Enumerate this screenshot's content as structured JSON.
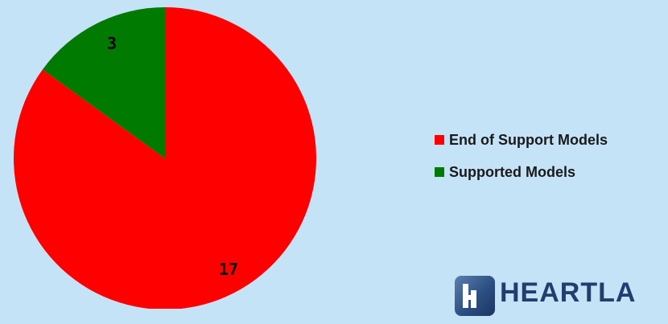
{
  "chart_data": {
    "type": "pie",
    "categories": [
      "End of Support Models",
      "Supported Models"
    ],
    "values": [
      17,
      3
    ],
    "data_labels": [
      "17",
      "3"
    ],
    "colors": [
      "#ff0000",
      "#007a00"
    ],
    "title": "",
    "legend_position": "right"
  },
  "background_color": "#c5e3f7",
  "legend": {
    "items": [
      {
        "label": "End of Support Models",
        "color": "#ff0000"
      },
      {
        "label": "Supported Models",
        "color": "#007a00"
      }
    ]
  },
  "logo": {
    "text": "HEARTLA",
    "icon": "heartland-logo-icon"
  }
}
